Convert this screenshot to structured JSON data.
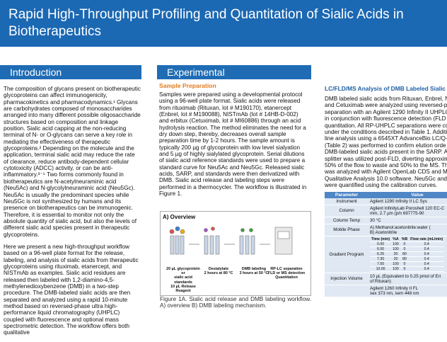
{
  "header": {
    "title": "Rapid High-Throughput Profiling and Quantitation of Sialic Acids in Biotherapeutics"
  },
  "introduction": {
    "heading": "Introduction",
    "paragraphs": [
      "The composition of glycans present on biotherapeutic glycoproteins can affect immunogenicity, pharmacokinetics and pharmacodynamics.¹ Glycans are carbohydrates composed of monosaccharides arranged into many different possible oligosaccharide structures based on composition and linkage position. Sialic acid capping at the non-reducing terminal of N- or O-glycans can serve a key role in mediating the effectiveness of therapeutic glycoproteins.² Depending on the molecule and the application, terminal sialic acid may reduce the rate of clearance, reduce antibody-dependent cellular cytotoxicity (ADCC) activity, or can be anti-inflammatory.³⁻⁵ Two forms commonly found in biotherapeutics are N-acetylneuraminic acid (Neu5Ac) and N-glycolylneuraminic acid (Neu5Gc). Neu5Ac is usually the predominant species while Neu5Gc is not synthesized by humans and its presence on biotherapeutics can be immunogenic. Therefore, it is essential to monitor not only the absolute quantity of sialic acid, but also the levels of different sialic acid species present in therapeutic glycoproteins.",
      "Here we present a new high-throughput workflow based on a 96-well plate format for the release, labeling, and analysis of sialic acids from therapeutic glycoproteins using rituximab, etanercept, and NISTmAb as examples. Sialic acid residues are released then labeled with 1,2-diamino-4,5-methylenedioxybenzene (DMB) in a two-step procedure. The DMB-labeled sialic acids are then separated and analyzed using a rapid 10-minute method based on reversed-phase ultra high-performance liquid chromatography (UHPLC) coupled with fluorescence and optional mass spectrometric detection. The workflow offers both qualitative"
    ]
  },
  "experimental": {
    "heading": "Experimental",
    "subheading": "Sample Preparation",
    "text": "Samples were prepared using a developmental protocol using a 96-well plate format. Sialic acids were released from rituximab (Rituxan, lot # M190170), etanercept (Enbrel, lot # M190088), NISTmAb (lot # 14HB-D-002) and erbitux (Cetuximab, lot # MI60886) through an acid hydrolysis reaction. The method eliminates the need for a dry down step, thereby, decreases overall sample preparation time by 1-2 hours. The sample amount is typically 200 µg of glycoprotein with low level sialyation and 5 µg of highly sialylated glycoprotein. Serial dilutions of sialic acid reference standards were used to prepare a standard curve for Neu5Ac and Neu5Gc. Released sialic acids, SARP, and standards were then derivatized with DMB. Sialic acid release and labeling steps were performed in a thermocycler. The workflow is illustrated in Figure 1.",
    "figure": {
      "panel": "A) Overview",
      "steps": [
        [
          "20 µL glycoprotein",
          "or",
          "sialic acid",
          "standards",
          "10 µL Release",
          "Reagent"
        ],
        [
          "Desialylate",
          "2 hours at 80 °C"
        ],
        [
          "DMB labeling",
          "3 hours at 50 °C"
        ],
        [
          "RP-LC separation",
          "FLD or MS detection",
          "Quantitation"
        ]
      ],
      "caption": "Figure 1A. Sialic acid release and DMB labeling workflow. A) overview B) DMB labeling mechanism."
    }
  },
  "lc_fld_ms": {
    "heading": "LC/FLD/MS Analysis of DMB Labeled Sialic Ac",
    "lines": [
      "DMB labeled sialic acids from Rituxan, Enbrel, N",
      "and Cetuximab were analyzed using reversed-ph",
      "separation with an Agilent 1290 Infinity II UHPLC",
      "in conjunction with fluorescence detection (FLD",
      "quantitation. All RP-UHPLC separations were co",
      "under the conditions described in Table 1. Additi",
      "line analysis using a 6545XT AdvanceBio LC/Q-",
      "(Table 2) was performed to confirm elution orde",
      "DMB-labeled sialic acids present in the SARP. A",
      "splitter was utilized post-FLD, diverting approxim",
      "50% of the flow to waste and 50% to the MS. Th",
      "was analyzed with Agilent OpenLab CDS and Ma",
      "Qualitative Analysis 10.0 software. Neu5Gc and",
      "were quantified using the calibration curves."
    ],
    "table": {
      "header": [
        "Parameter",
        "Value"
      ],
      "rows": [
        [
          "Instrument",
          [
            "Agilent 1290 Infinity II LC Sys"
          ]
        ],
        [
          "Column",
          [
            "Agilent InfinityLab Poroshell 120 EC-C",
            "mm, 2.7 µm (p/n 697775-90"
          ]
        ],
        [
          "Column Temp",
          [
            "30 °C"
          ]
        ],
        [
          "Mobile Phase",
          [
            "A) Methanol:acetonitrile:water (",
            "B) Acetonitrile"
          ]
        ],
        [
          "Gradient Program",
          []
        ],
        [
          "Injection Volume",
          [
            "10 µL (Equivalent to 0.25 pmol of Eri",
            "of Rituxan)"
          ]
        ],
        [
          "",
          [
            "Agilent 1260 Infinity II FL",
            "λex 373 nm, λem 448 nm"
          ]
        ]
      ],
      "gradient": {
        "header": [
          "Time (min)",
          "%A",
          "%B",
          "Flow rate (mL/min)"
        ],
        "rows": [
          [
            "0.00",
            "100",
            "0",
            "0.4"
          ],
          [
            "6.00",
            "100",
            "0",
            "0.4"
          ],
          [
            "6.25",
            "20",
            "80",
            "0.4"
          ],
          [
            "7.30",
            "20",
            "80",
            "0.4"
          ],
          [
            "7.50",
            "100",
            "0",
            "0.4"
          ],
          [
            "10.00",
            "100",
            "0",
            "0.4"
          ]
        ],
        "notes": [
          "Isocratic e",
          "Wash",
          "Re-equilib"
        ]
      }
    }
  }
}
